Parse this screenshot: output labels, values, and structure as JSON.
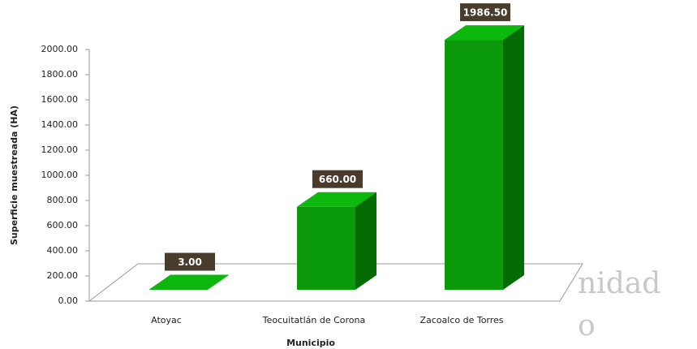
{
  "chart_data": {
    "type": "bar3d",
    "categories": [
      "Atoyac",
      "Teocuitatlán de Corona",
      "Zacoalco de Torres"
    ],
    "values": [
      3,
      660,
      1986.5
    ],
    "value_labels": [
      "3.00",
      "660.00",
      "1986.50"
    ],
    "color": "#0a9a0a",
    "ylabel": "Superficie muestreada (HA)",
    "xlabel": "Municipio",
    "ylim": [
      0,
      2000
    ],
    "yticks": [
      {
        "value": 0,
        "label": "0.00"
      },
      {
        "value": 200,
        "label": "200.00"
      },
      {
        "value": 400,
        "label": "400.00"
      },
      {
        "value": 600,
        "label": "600.00"
      },
      {
        "value": 800,
        "label": "800.00"
      },
      {
        "value": 1000,
        "label": "1000.00"
      },
      {
        "value": 1200,
        "label": "1200.00"
      },
      {
        "value": 1400,
        "label": "1400.00"
      },
      {
        "value": 1600,
        "label": "1600.00"
      },
      {
        "value": 1800,
        "label": "1800.00"
      },
      {
        "value": 2000,
        "label": "2000.00"
      }
    ],
    "watermark": [
      "nidad",
      "o"
    ]
  }
}
